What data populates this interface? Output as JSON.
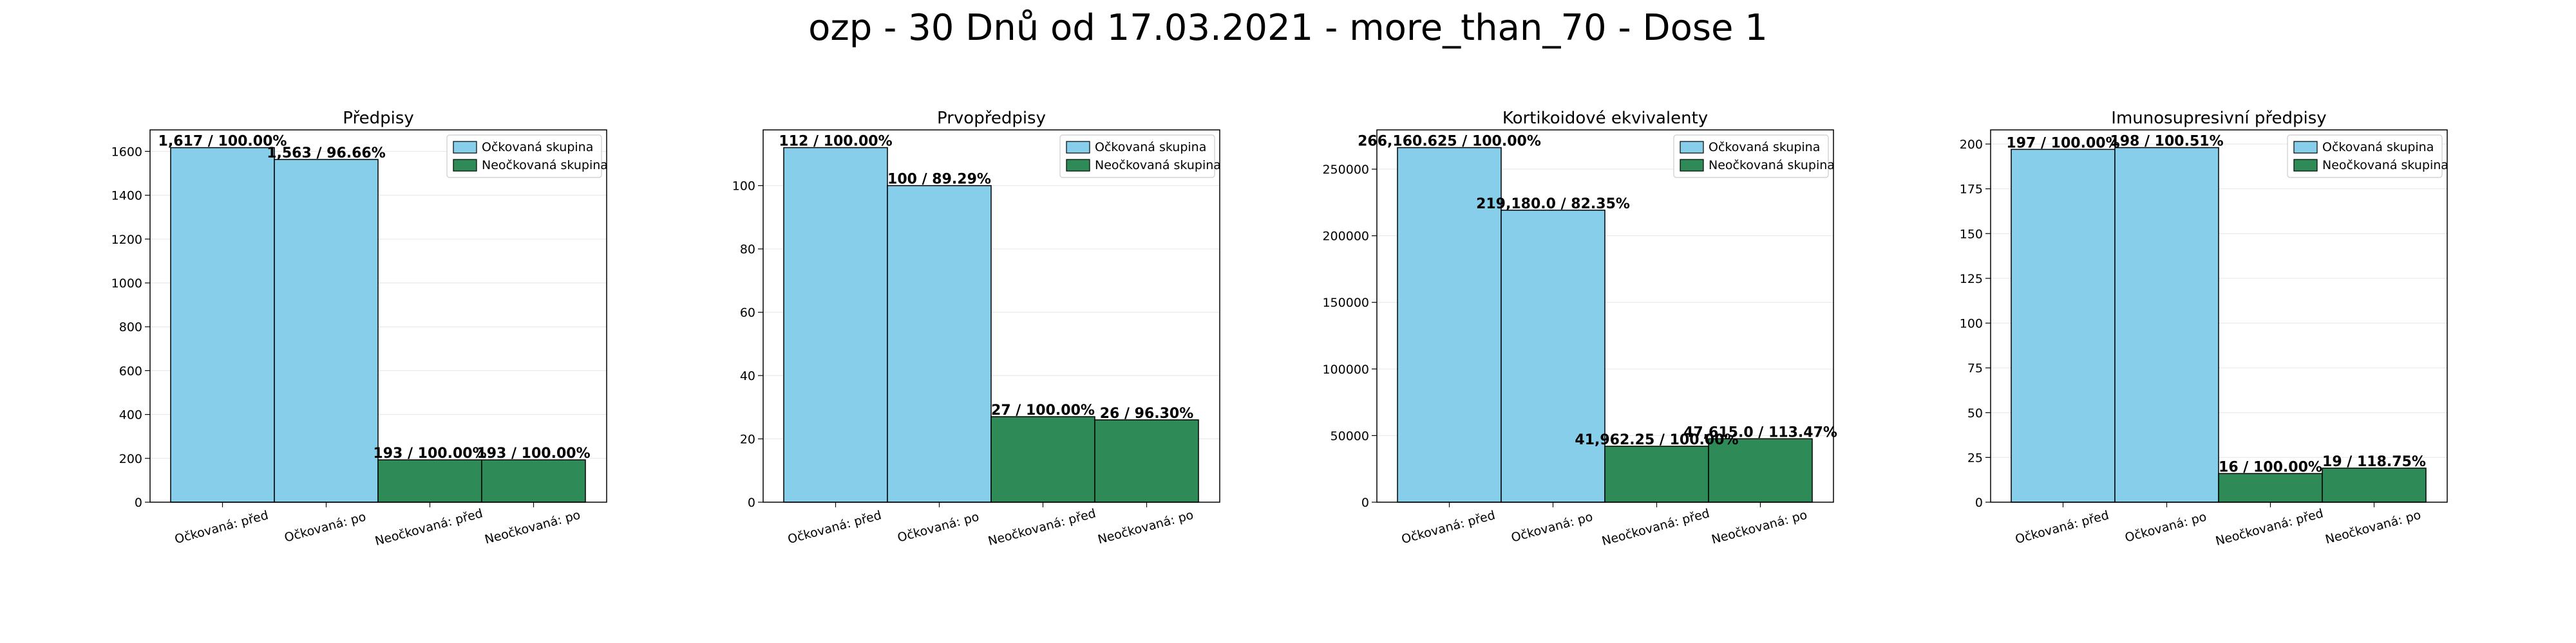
{
  "suptitle": "ozp - 30 Dnů od 17.03.2021 - more_than_70 - Dose 1",
  "colors": {
    "vaccinated": "#87ceeb",
    "unvaccinated": "#2e8b57",
    "edge": "#000000",
    "grid": "#e6e6e6"
  },
  "legend": {
    "vaccinated": "Očkovaná skupina",
    "unvaccinated": "Neočkovaná skupina",
    "placement": "top-right"
  },
  "chart_data": [
    {
      "type": "bar",
      "title": "Předpisy",
      "categories": [
        "Očkovaná: před",
        "Očkovaná: po",
        "Neočkovaná: před",
        "Neočkovaná: po"
      ],
      "values": [
        1617,
        1563,
        193,
        193
      ],
      "groups": [
        "vaccinated",
        "vaccinated",
        "unvaccinated",
        "unvaccinated"
      ],
      "labels": [
        "1,617 / 100.00%",
        "1,563 / 96.66%",
        "193 / 100.00%",
        "193 / 100.00%"
      ],
      "yticks": [
        0,
        200,
        400,
        600,
        800,
        1000,
        1200,
        1400,
        1600
      ],
      "ytick_labels": [
        "0",
        "200",
        "400",
        "600",
        "800",
        "1000",
        "1200",
        "1400",
        "1600"
      ],
      "ylim": [
        0,
        1698
      ],
      "grid": "y"
    },
    {
      "type": "bar",
      "title": "Prvopředpisy",
      "categories": [
        "Očkovaná: před",
        "Očkovaná: po",
        "Neočkovaná: před",
        "Neočkovaná: po"
      ],
      "values": [
        112,
        100,
        27,
        26
      ],
      "groups": [
        "vaccinated",
        "vaccinated",
        "unvaccinated",
        "unvaccinated"
      ],
      "labels": [
        "112 / 100.00%",
        "100 / 89.29%",
        "27 / 100.00%",
        "26 / 96.30%"
      ],
      "yticks": [
        0,
        20,
        40,
        60,
        80,
        100
      ],
      "ytick_labels": [
        "0",
        "20",
        "40",
        "60",
        "80",
        "100"
      ],
      "ylim": [
        0,
        117.6
      ],
      "grid": "y"
    },
    {
      "type": "bar",
      "title": "Kortikoidové ekvivalenty",
      "categories": [
        "Očkovaná: před",
        "Očkovaná: po",
        "Neočkovaná: před",
        "Neočkovaná: po"
      ],
      "values": [
        266160.625,
        219180.0,
        41962.25,
        47615.0
      ],
      "groups": [
        "vaccinated",
        "vaccinated",
        "unvaccinated",
        "unvaccinated"
      ],
      "labels": [
        "266,160.625 / 100.00%",
        "219,180.0 / 82.35%",
        "41,962.25 / 100.00%",
        "47,615.0 / 113.47%"
      ],
      "yticks": [
        0,
        50000,
        100000,
        150000,
        200000,
        250000
      ],
      "ytick_labels": [
        "0",
        "50000",
        "100000",
        "150000",
        "200000",
        "250000"
      ],
      "ylim": [
        0,
        279469
      ],
      "grid": "y"
    },
    {
      "type": "bar",
      "title": "Imunosupresivní předpisy",
      "categories": [
        "Očkovaná: před",
        "Očkovaná: po",
        "Neočkovaná: před",
        "Neočkovaná: po"
      ],
      "values": [
        197,
        198,
        16,
        19
      ],
      "groups": [
        "vaccinated",
        "vaccinated",
        "unvaccinated",
        "unvaccinated"
      ],
      "labels": [
        "197 / 100.00%",
        "198 / 100.51%",
        "16 / 100.00%",
        "19 / 118.75%"
      ],
      "yticks": [
        0,
        25,
        50,
        75,
        100,
        125,
        150,
        175,
        200
      ],
      "ytick_labels": [
        "0",
        "25",
        "50",
        "75",
        "100",
        "125",
        "150",
        "175",
        "200"
      ],
      "ylim": [
        0,
        207.9
      ],
      "grid": "y"
    }
  ]
}
